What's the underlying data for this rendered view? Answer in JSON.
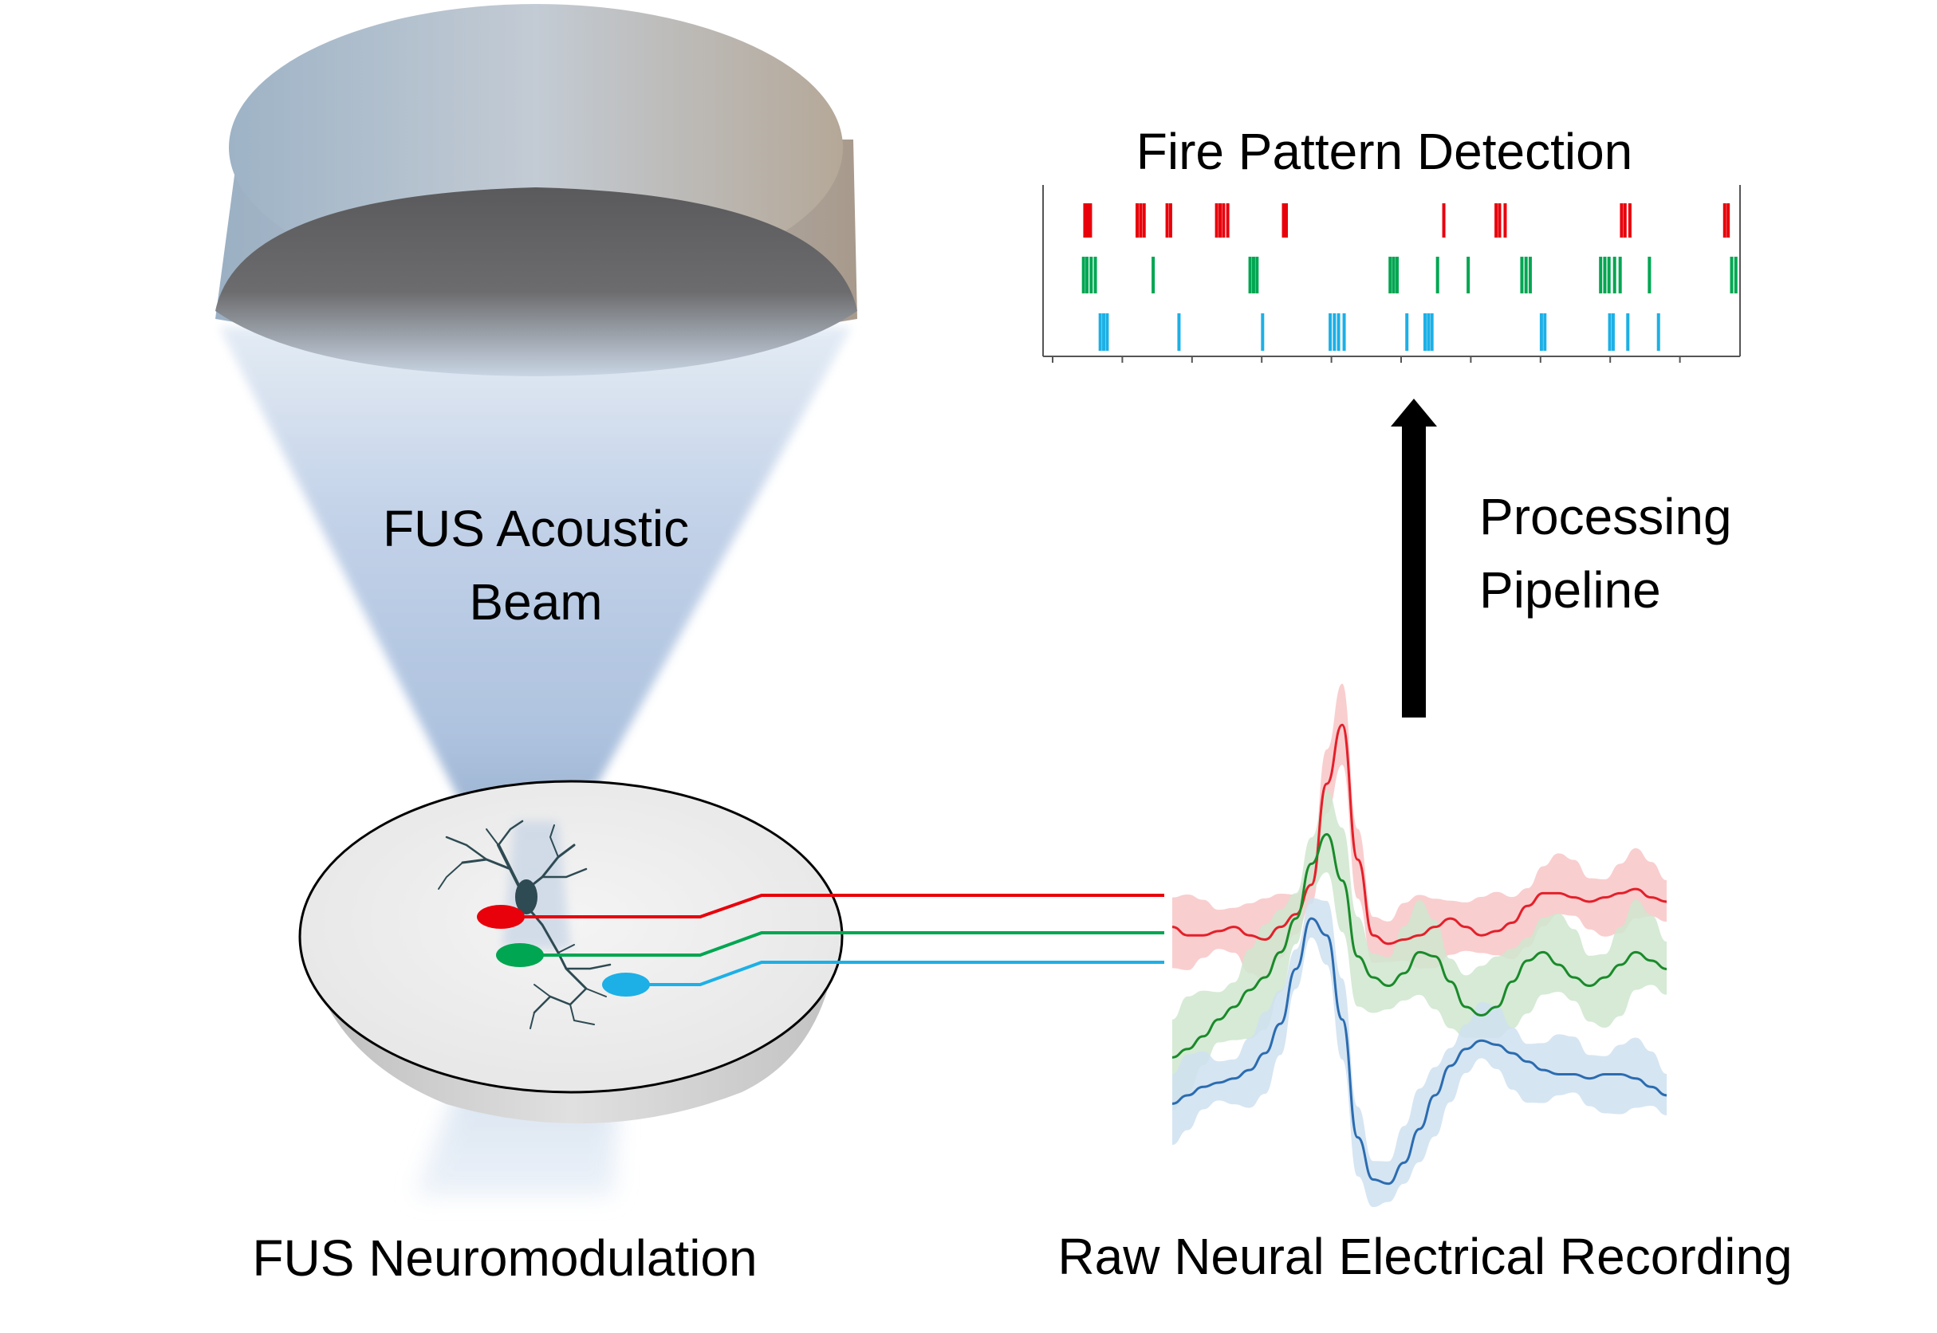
{
  "labels": {
    "beam_line1": "FUS Acoustic",
    "beam_line2": "Beam",
    "raster_title": "Fire Pattern Detection",
    "pipeline_line1": "Processing",
    "pipeline_line2": "Pipeline",
    "left_caption": "FUS Neuromodulation",
    "right_caption": "Raw Neural Electrical Recording"
  },
  "colors": {
    "red": "#e8000b",
    "green": "#00a651",
    "blue": "#1cb0e6",
    "trace_red": "#e3202a",
    "trace_green": "#1a8a2a",
    "trace_blue": "#2b6cb0",
    "arrow": "#000000"
  },
  "icons": [
    "transducer-icon",
    "neuron-icon",
    "electrode-icon",
    "arrow-up-icon"
  ],
  "raster": {
    "time_range": [
      0,
      100
    ],
    "channels": [
      {
        "name": "red",
        "color": "#e8000b",
        "spikes": [
          6.0,
          6.4,
          6.8,
          13.5,
          14.0,
          14.5,
          17.8,
          18.3,
          24.9,
          25.4,
          25.9,
          26.5,
          34.5,
          34.9,
          57.5,
          65.0,
          65.5,
          66.3,
          83.0,
          83.5,
          84.2,
          97.8,
          98.3
        ]
      },
      {
        "name": "green",
        "color": "#00a651",
        "spikes": [
          5.8,
          6.3,
          6.9,
          7.5,
          15.8,
          29.7,
          30.2,
          30.7,
          49.8,
          50.3,
          50.8,
          56.6,
          61.0,
          68.7,
          69.3,
          69.9,
          80.0,
          80.6,
          81.2,
          82.0,
          82.8,
          87.0,
          98.8,
          99.4
        ]
      },
      {
        "name": "blue",
        "color": "#1cb0e6",
        "spikes": [
          8.2,
          8.7,
          9.2,
          19.5,
          31.5,
          41.2,
          41.8,
          42.4,
          43.2,
          52.2,
          54.8,
          55.3,
          55.8,
          71.5,
          72.0,
          81.3,
          81.8,
          83.9,
          88.3
        ]
      }
    ]
  },
  "recording": {
    "samples": 33,
    "channels": [
      {
        "name": "red",
        "mean": [
          0.62,
          0.6,
          0.6,
          0.61,
          0.62,
          0.6,
          0.59,
          0.62,
          0.65,
          0.72,
          0.96,
          1.1,
          0.78,
          0.6,
          0.58,
          0.59,
          0.6,
          0.62,
          0.64,
          0.62,
          0.6,
          0.61,
          0.63,
          0.67,
          0.7,
          0.7,
          0.69,
          0.68,
          0.69,
          0.7,
          0.71,
          0.69,
          0.68
        ],
        "band": 0.07
      },
      {
        "name": "green",
        "mean": [
          0.31,
          0.33,
          0.36,
          0.4,
          0.43,
          0.47,
          0.5,
          0.56,
          0.64,
          0.77,
          0.84,
          0.73,
          0.55,
          0.5,
          0.48,
          0.51,
          0.56,
          0.55,
          0.49,
          0.43,
          0.41,
          0.43,
          0.49,
          0.54,
          0.56,
          0.53,
          0.5,
          0.48,
          0.5,
          0.53,
          0.56,
          0.54,
          0.52
        ],
        "band": 0.09
      },
      {
        "name": "blue",
        "mean": [
          0.2,
          0.22,
          0.24,
          0.25,
          0.26,
          0.28,
          0.32,
          0.39,
          0.52,
          0.64,
          0.6,
          0.4,
          0.12,
          0.02,
          0.01,
          0.06,
          0.14,
          0.22,
          0.29,
          0.33,
          0.35,
          0.34,
          0.32,
          0.3,
          0.28,
          0.27,
          0.27,
          0.26,
          0.27,
          0.27,
          0.26,
          0.24,
          0.22
        ],
        "band": 0.07
      }
    ]
  }
}
